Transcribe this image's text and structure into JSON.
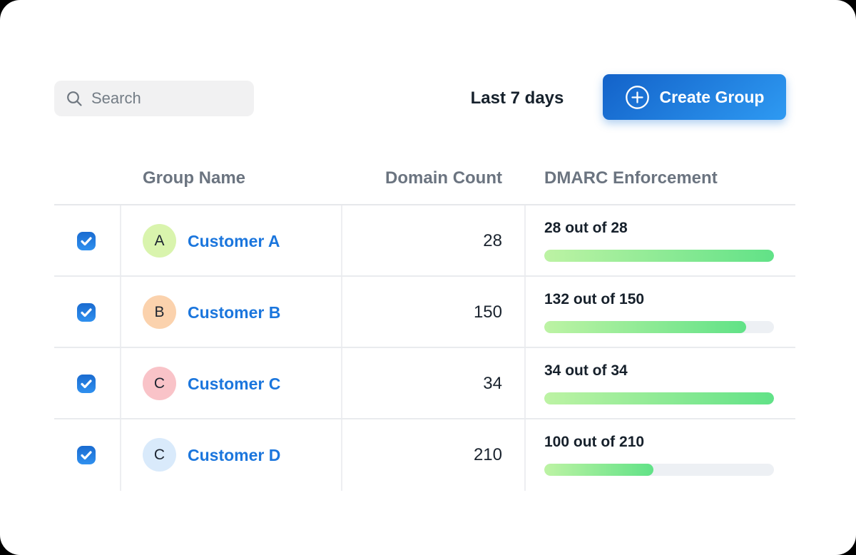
{
  "toolbar": {
    "search_placeholder": "Search",
    "date_range_label": "Last 7 days",
    "create_group_label": "Create Group"
  },
  "table": {
    "columns": {
      "group_name": "Group Name",
      "domain_count": "Domain Count",
      "dmarc_enforcement": "DMARC Enforcement"
    },
    "rows": [
      {
        "selected": true,
        "avatar_letter": "A",
        "avatar_color": "#d9f4ad",
        "name": "Customer A",
        "domain_count": "28",
        "dmarc_label": "28 out of 28",
        "dmarc_enforced": 28,
        "dmarc_total": 28
      },
      {
        "selected": true,
        "avatar_letter": "B",
        "avatar_color": "#fbd2ad",
        "name": "Customer B",
        "domain_count": "150",
        "dmarc_label": "132 out of 150",
        "dmarc_enforced": 132,
        "dmarc_total": 150
      },
      {
        "selected": true,
        "avatar_letter": "C",
        "avatar_color": "#f9c3c8",
        "name": "Customer C",
        "domain_count": "34",
        "dmarc_label": "34 out of 34",
        "dmarc_enforced": 34,
        "dmarc_total": 34
      },
      {
        "selected": true,
        "avatar_letter": "C",
        "avatar_color": "#d9eafb",
        "name": "Customer D",
        "domain_count": "210",
        "dmarc_label": "100 out of 210",
        "dmarc_enforced": 100,
        "dmarc_total": 210
      }
    ]
  },
  "colors": {
    "accent_blue": "#1b76dd",
    "button_gradient_start": "#1362c9",
    "button_gradient_end": "#2e9af2",
    "progress_gradient_start": "#bdf3a4",
    "progress_gradient_end": "#61e287",
    "progress_track": "#edf0f4"
  }
}
